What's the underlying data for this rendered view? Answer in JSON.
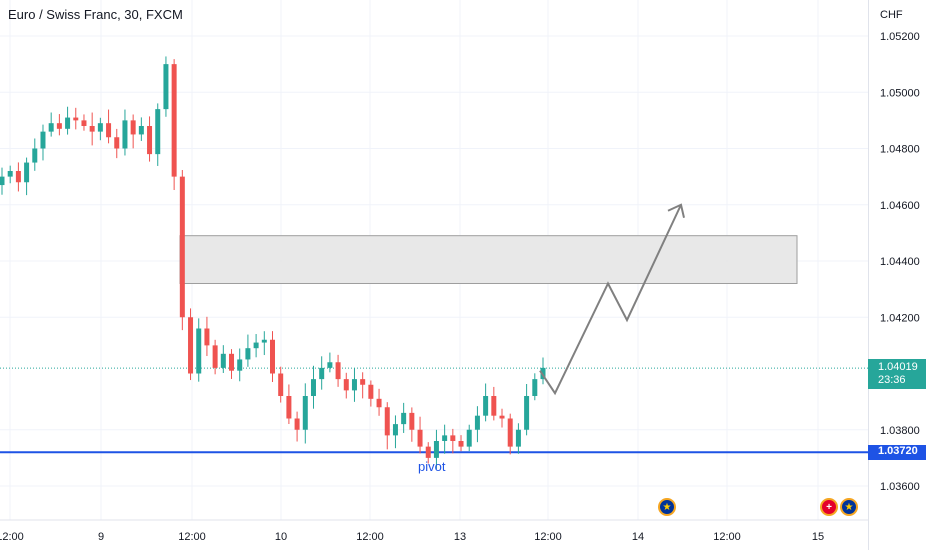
{
  "header": {
    "title": "Euro / Swiss Franc, 30, FXCM",
    "currency": "CHF"
  },
  "price_axis": {
    "labels": [
      "1.05200",
      "1.05000",
      "1.04800",
      "1.04600",
      "1.04400",
      "1.04200",
      "1.03800",
      "1.03600"
    ],
    "current_price": "1.04019",
    "countdown": "23:36",
    "level_price": "1.03720"
  },
  "time_axis": {
    "labels": [
      "12:00",
      "9",
      "12:00",
      "10",
      "12:00",
      "13",
      "12:00",
      "14",
      "12:00",
      "15"
    ]
  },
  "annotations": {
    "pivot_label": "pivot"
  },
  "events": [
    "eu-flag-icon",
    "ch-flag-icon",
    "eu-flag-icon"
  ],
  "colors": {
    "up": "#26a69a",
    "down": "#ef5350",
    "level_line": "#1e53e5",
    "zone_fill": "#e6e6e6",
    "projection": "#808080"
  },
  "chart_data": {
    "type": "candlestick",
    "symbol": "Euro / Swiss Franc",
    "interval": "30",
    "source": "FXCM",
    "y_unit": "CHF",
    "ylim": [
      1.0348,
      1.0532
    ],
    "yticks": [
      1.052,
      1.05,
      1.048,
      1.046,
      1.044,
      1.042,
      1.038,
      1.036
    ],
    "xticks": [
      "12:00",
      "9",
      "12:00",
      "10",
      "12:00",
      "13",
      "12:00",
      "14",
      "12:00",
      "15"
    ],
    "close_path": [
      1.047,
      1.0472,
      1.0468,
      1.0475,
      1.048,
      1.0486,
      1.0489,
      1.0487,
      1.0491,
      1.049,
      1.0488,
      1.0486,
      1.0489,
      1.0484,
      1.048,
      1.049,
      1.0485,
      1.0488,
      1.0478,
      1.0494,
      1.051,
      1.047,
      1.042,
      1.04,
      1.0416,
      1.041,
      1.0402,
      1.0407,
      1.0401,
      1.0405,
      1.0409,
      1.0411,
      1.0412,
      1.04,
      1.0392,
      1.0384,
      1.038,
      1.0392,
      1.0398,
      1.0402,
      1.0404,
      1.0398,
      1.0394,
      1.0398,
      1.0396,
      1.0391,
      1.0388,
      1.0378,
      1.0382,
      1.0386,
      1.038,
      1.0374,
      1.037,
      1.0376,
      1.0378,
      1.0376,
      1.0374,
      1.038,
      1.0385,
      1.0392,
      1.0385,
      1.0384,
      1.0374,
      1.038,
      1.0392,
      1.0398,
      1.0402
    ],
    "levels": {
      "current_price": 1.04019,
      "support_line": 1.0372
    },
    "zone": {
      "top": 1.0449,
      "bottom": 1.0432
    },
    "projection_path": [
      1.0393,
      1.0432,
      1.0419,
      1.046
    ],
    "annotations": [
      "pivot"
    ]
  }
}
